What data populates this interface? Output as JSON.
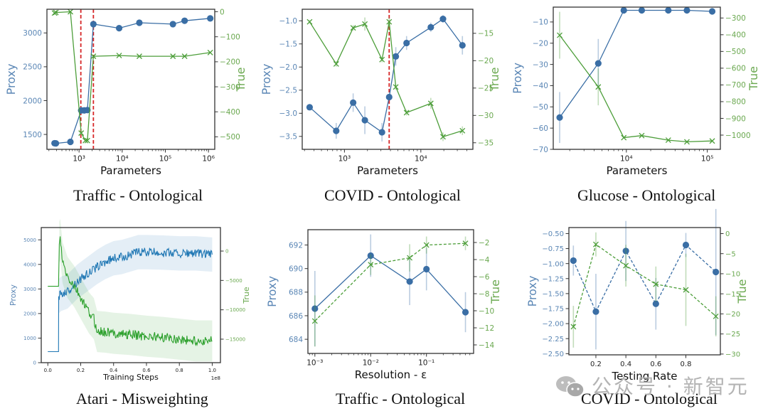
{
  "colors": {
    "proxy": "#3a6ea5",
    "proxy_label": "#5a86b5",
    "true": "#4d9e3a",
    "true_label": "#6aa84f",
    "vline": "#d62728",
    "axis": "#333333",
    "atari_proxy": "#1f77b4",
    "atari_true": "#2ca02c"
  },
  "watermark": {
    "text": "公众号 · 新智元",
    "icon": "wechat-icon"
  },
  "chart_data": [
    {
      "id": "p1",
      "type": "line",
      "title": "Traffic - Ontological",
      "xlabel": "Parameters",
      "ylabel_left": "Proxy",
      "ylabel_right": "True",
      "xscale": "log",
      "xlim": [
        180,
        1400000
      ],
      "ylim_left": [
        1280,
        3350
      ],
      "ylim_right": [
        -550,
        10
      ],
      "xticks": [
        {
          "v": 1000,
          "label": "10³"
        },
        {
          "v": 10000,
          "label": "10⁴"
        },
        {
          "v": 100000,
          "label": "10⁵"
        },
        {
          "v": 1000000,
          "label": "10⁶"
        }
      ],
      "yticks_left": [
        1500,
        2000,
        2500,
        3000
      ],
      "yticks_right": [
        0,
        -100,
        -200,
        -300,
        -400,
        -500
      ],
      "vlines": [
        1100,
        2150
      ],
      "series": [
        {
          "name": "Proxy",
          "axis": "left",
          "style": "solid",
          "marker": "o",
          "x": [
            270,
            290,
            630,
            1120,
            1320,
            1560,
            2150,
            8500,
            25000,
            150000,
            280000,
            1100000
          ],
          "y": [
            1370,
            1368,
            1390,
            1855,
            1855,
            1860,
            3130,
            3070,
            3150,
            3130,
            3180,
            3215
          ]
        },
        {
          "name": "True",
          "axis": "right",
          "style": "solid",
          "marker": "x",
          "x": [
            270,
            290,
            630,
            1120,
            1400,
            1560,
            2150,
            8500,
            25000,
            150000,
            280000,
            1100000
          ],
          "y": [
            -5,
            -3,
            0,
            -485,
            -515,
            -515,
            -178,
            -175,
            -178,
            -178,
            -178,
            -163
          ]
        }
      ]
    },
    {
      "id": "p2",
      "type": "line",
      "title": "COVID - Ontological",
      "xlabel": "Parameters",
      "ylabel_left": "Proxy",
      "ylabel_right": "True",
      "xscale": "log",
      "xlim": [
        280,
        48000
      ],
      "ylim_left": [
        -3.78,
        -0.75
      ],
      "ylim_right": [
        -36.2,
        -10.6
      ],
      "xticks": [
        {
          "v": 1000,
          "label": "10³"
        },
        {
          "v": 10000,
          "label": "10⁴"
        }
      ],
      "yticks_left": [
        -1.0,
        -1.5,
        -2.0,
        -2.5,
        -3.0,
        -3.5
      ],
      "yticks_right": [
        -15,
        -20,
        -25,
        -30,
        -35
      ],
      "vlines": [
        3850
      ],
      "series": [
        {
          "name": "Proxy",
          "axis": "left",
          "style": "solid",
          "marker": "o",
          "x": [
            350,
            780,
            1300,
            1850,
            3100,
            3850,
            4700,
            6500,
            13500,
            19500,
            35000
          ],
          "y": [
            -2.87,
            -3.38,
            -2.77,
            -3.15,
            -3.41,
            -2.65,
            -1.77,
            -1.48,
            -1.14,
            -0.96,
            -1.53
          ],
          "err": [
            0.05,
            0.17,
            0.2,
            0.3,
            0.2,
            0.05,
            0.2,
            0.15,
            0.1,
            0.08,
            0.2
          ]
        },
        {
          "name": "True",
          "axis": "right",
          "style": "solid",
          "marker": "x",
          "x": [
            350,
            780,
            1300,
            1850,
            3100,
            3850,
            4700,
            6500,
            13500,
            19500,
            35000
          ],
          "y": [
            -12.9,
            -20.6,
            -14.0,
            -13.3,
            -19.8,
            -12.9,
            -24.8,
            -29.5,
            -27.8,
            -33.9,
            -32.8
          ],
          "err": [
            0.3,
            0.5,
            0.5,
            1.2,
            0.5,
            0.8,
            0.5,
            0.5,
            1.0,
            0.8,
            0.8
          ]
        }
      ]
    },
    {
      "id": "p3",
      "type": "line",
      "title": "Glucose - Ontological",
      "xlabel": "Parameters",
      "ylabel_left": "Proxy",
      "ylabel_right": "True",
      "xscale": "log",
      "xlim": [
        1250,
        145000
      ],
      "ylim_left": [
        -70,
        -3
      ],
      "ylim_right": [
        -1085,
        -235
      ],
      "xticks": [
        {
          "v": 10000,
          "label": "10⁴"
        },
        {
          "v": 100000,
          "label": "10⁵"
        }
      ],
      "yticks_left": [
        -10,
        -20,
        -30,
        -40,
        -50,
        -60,
        -70
      ],
      "yticks_right": [
        -300,
        -400,
        -500,
        -600,
        -700,
        -800,
        -900,
        -1000
      ],
      "vlines": [],
      "series": [
        {
          "name": "Proxy",
          "axis": "left",
          "style": "solid",
          "marker": "o",
          "x": [
            1500,
            4500,
            9300,
            15500,
            33000,
            56000,
            115000
          ],
          "y": [
            -55,
            -29.5,
            -4.5,
            -4.5,
            -4.5,
            -4.5,
            -5
          ],
          "err": [
            12,
            11.5,
            0.3,
            0.3,
            0.3,
            0.3,
            0.3
          ]
        },
        {
          "name": "True",
          "axis": "right",
          "style": "solid",
          "marker": "x",
          "x": [
            1500,
            4500,
            9300,
            15500,
            33000,
            56000,
            115000
          ],
          "y": [
            -403,
            -712,
            -1015,
            -1003,
            -1030,
            -1040,
            -1035
          ],
          "err": [
            140,
            110,
            5,
            5,
            5,
            5,
            5
          ]
        }
      ]
    },
    {
      "id": "p4",
      "type": "line",
      "title": "Atari - Misweighting",
      "xlabel": "Training Steps",
      "x_offset_label": "1e8",
      "ylabel_left": "Proxy",
      "ylabel_right": "True",
      "xscale": "linear",
      "xlim": [
        -0.04,
        1.05
      ],
      "ylim_left": [
        0,
        5500
      ],
      "ylim_right": [
        -19000,
        4000
      ],
      "xticks": [
        {
          "v": 0,
          "label": "0.0"
        },
        {
          "v": 0.2,
          "label": "0.2"
        },
        {
          "v": 0.4,
          "label": "0.4"
        },
        {
          "v": 0.6,
          "label": "0.6"
        },
        {
          "v": 0.8,
          "label": "0.8"
        },
        {
          "v": 1.0,
          "label": "1.0"
        }
      ],
      "yticks_left": [
        0,
        1000,
        2000,
        3000,
        4000,
        5000
      ],
      "yticks_right": [
        0,
        -5000,
        -10000,
        -15000
      ],
      "series": [
        {
          "name": "Proxy",
          "axis": "left",
          "style": "noisy",
          "x": [
            0,
            0.065,
            0.066,
            0.08,
            0.12,
            0.18,
            0.22,
            0.26,
            0.3,
            0.35,
            0.4,
            0.45,
            0.5,
            0.55,
            0.6,
            0.7,
            0.8,
            0.9,
            1.0
          ],
          "y": [
            450,
            450,
            2700,
            2800,
            2900,
            3300,
            3500,
            3700,
            3900,
            4100,
            4250,
            4300,
            4400,
            4500,
            4500,
            4480,
            4450,
            4450,
            4400
          ]
        },
        {
          "name": "True",
          "axis": "right",
          "style": "noisy",
          "x": [
            0,
            0.065,
            0.07,
            0.075,
            0.09,
            0.12,
            0.16,
            0.2,
            0.25,
            0.28,
            0.3,
            0.35,
            0.4,
            0.5,
            0.6,
            0.7,
            0.8,
            0.9,
            1.0
          ],
          "y": [
            -6000,
            -6000,
            1500,
            2000,
            -2000,
            -4500,
            -6000,
            -8000,
            -10500,
            -11500,
            -13700,
            -13800,
            -14000,
            -14200,
            -14500,
            -14700,
            -15000,
            -15300,
            -15300
          ]
        }
      ]
    },
    {
      "id": "p5",
      "type": "line",
      "title": "Traffic - Ontological",
      "xlabel": "Resolution - ε",
      "ylabel_left": "Proxy",
      "ylabel_right": "True",
      "xscale": "log",
      "xlim": [
        0.00075,
        0.7
      ],
      "ylim_left": [
        682.8,
        693.3
      ],
      "ylim_right": [
        -15,
        -0.5
      ],
      "xticks": [
        {
          "v": 0.001,
          "label": "10⁻³"
        },
        {
          "v": 0.01,
          "label": "10⁻²"
        },
        {
          "v": 0.1,
          "label": "10⁻¹"
        }
      ],
      "yticks_left": [
        684,
        686,
        688,
        690,
        692
      ],
      "yticks_right": [
        -2,
        -4,
        -6,
        -8,
        -10,
        -12,
        -14
      ],
      "series": [
        {
          "name": "Proxy",
          "axis": "left",
          "style": "solid",
          "marker": "o",
          "x": [
            0.001,
            0.01,
            0.05,
            0.1,
            0.5
          ],
          "y": [
            686.6,
            691.1,
            688.9,
            689.95,
            686.3
          ],
          "err": [
            3.2,
            1.8,
            2.0,
            1.8,
            1.7
          ]
        },
        {
          "name": "True",
          "axis": "right",
          "style": "dashed",
          "marker": "x",
          "x": [
            0.001,
            0.01,
            0.05,
            0.1,
            0.5
          ],
          "y": [
            -11.2,
            -4.6,
            -3.8,
            -2.3,
            -2.1
          ],
          "err": [
            3.0,
            1.2,
            1.6,
            1.0,
            0.8
          ]
        }
      ]
    },
    {
      "id": "p6",
      "type": "line",
      "title": "COVID - Ontological",
      "xlabel": "Testing Rate",
      "ylabel_left": "Proxy",
      "ylabel_right": "True",
      "xscale": "linear",
      "xlim": [
        0.02,
        1.03
      ],
      "ylim_left": [
        -2.52,
        -0.4
      ],
      "ylim_right": [
        -30.2,
        1.5
      ],
      "xticks": [
        {
          "v": 0.2,
          "label": "0.2"
        },
        {
          "v": 0.4,
          "label": "0.4"
        },
        {
          "v": 0.6,
          "label": "0.6"
        },
        {
          "v": 0.8,
          "label": "0.8"
        }
      ],
      "yticks_left": [
        -0.5,
        -0.75,
        -1.0,
        -1.25,
        -1.5,
        -1.75,
        -2.0,
        -2.25,
        -2.5
      ],
      "yticks_right": [
        0,
        -5,
        -10,
        -15,
        -20,
        -25,
        -30
      ],
      "series": [
        {
          "name": "Proxy",
          "axis": "left",
          "style": "dashed",
          "marker": "o",
          "x": [
            0.05,
            0.2,
            0.4,
            0.6,
            0.8,
            1.0
          ],
          "y": [
            -0.95,
            -1.8,
            -0.79,
            -1.67,
            -0.69,
            -1.14
          ],
          "err": [
            0.25,
            0.63,
            0.5,
            0.43,
            0.2,
            1.05
          ]
        },
        {
          "name": "True",
          "axis": "right",
          "style": "dashed",
          "marker": "x",
          "x": [
            0.05,
            0.2,
            0.4,
            0.6,
            0.8,
            1.0
          ],
          "y": [
            -23.2,
            -2.7,
            -8.0,
            -12.6,
            -14.0,
            -20.6
          ],
          "err": [
            5.2,
            3.0,
            5.2,
            4.4,
            9.0,
            5.0
          ]
        }
      ]
    }
  ]
}
